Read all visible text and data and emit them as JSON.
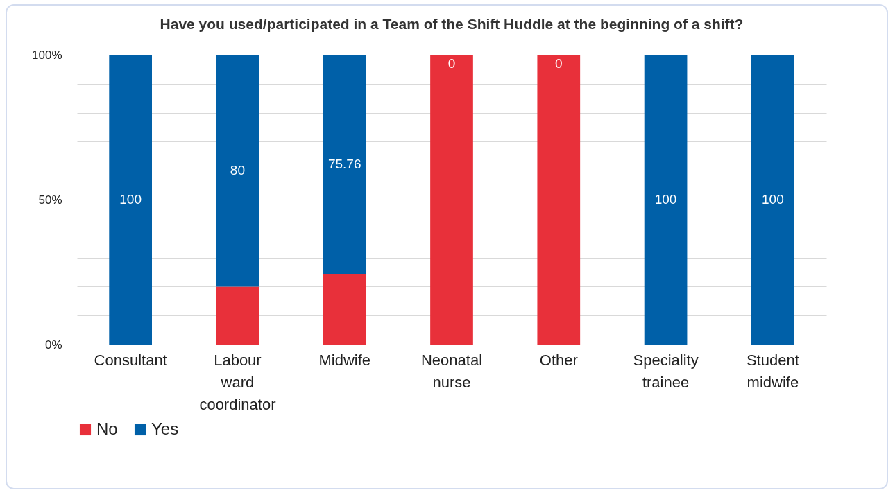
{
  "chart_data": {
    "type": "bar",
    "stacked": true,
    "title": "Have you used/participated in a Team of the Shift Huddle at the beginning of a shift?",
    "categories": [
      "Consultant",
      "Labour ward coordinator",
      "Midwife",
      "Neonatal nurse",
      "Other",
      "Speciality trainee",
      "Student midwife"
    ],
    "series": [
      {
        "name": "No",
        "color": "#e8303a",
        "values": [
          0,
          20,
          24.24,
          100,
          100,
          0,
          0
        ]
      },
      {
        "name": "Yes",
        "color": "#0060a8",
        "values": [
          100,
          80,
          75.76,
          0,
          0,
          100,
          100
        ],
        "value_labels": [
          "100",
          "80",
          "75.76",
          "0",
          "0",
          "100",
          "100"
        ]
      }
    ],
    "ylim": [
      0,
      100
    ],
    "yticks": [
      {
        "value": 0,
        "label": "0%"
      },
      {
        "value": 10,
        "label": null
      },
      {
        "value": 20,
        "label": null
      },
      {
        "value": 30,
        "label": null
      },
      {
        "value": 40,
        "label": null
      },
      {
        "value": 50,
        "label": "50%"
      },
      {
        "value": 60,
        "label": null
      },
      {
        "value": 70,
        "label": null
      },
      {
        "value": 80,
        "label": null
      },
      {
        "value": 90,
        "label": null
      },
      {
        "value": 100,
        "label": "100%"
      }
    ],
    "grid": "y",
    "legend": "bottom"
  }
}
